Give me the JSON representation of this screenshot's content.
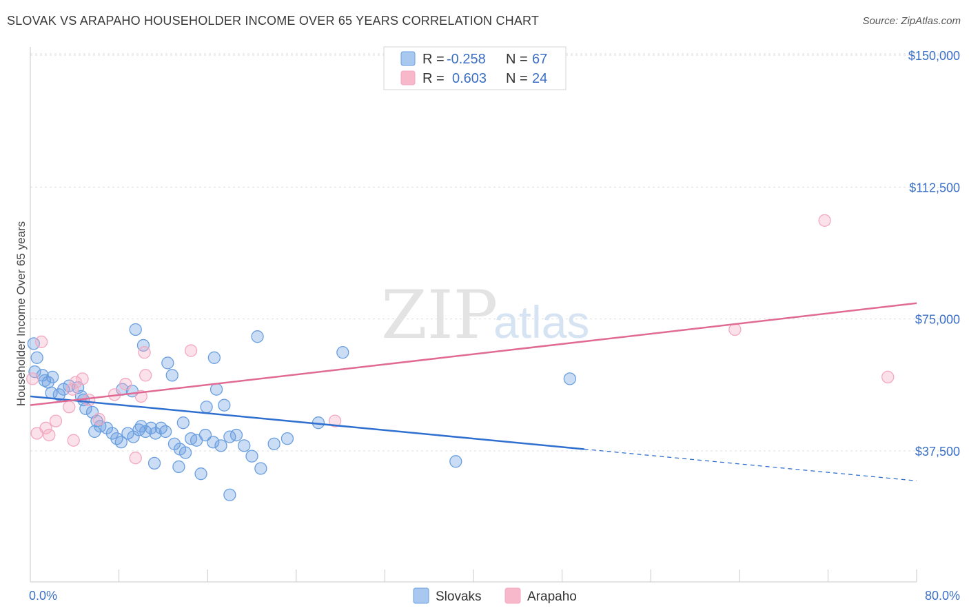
{
  "header": {
    "title": "SLOVAK VS ARAPAHO HOUSEHOLDER INCOME OVER 65 YEARS CORRELATION CHART",
    "source": "Source: ZipAtlas.com"
  },
  "watermark": {
    "part1": "ZIP",
    "part2": "atlas"
  },
  "legend": {
    "r_label": "R =",
    "n_label": "N =",
    "rows": [
      {
        "r": "-0.258",
        "n": "67",
        "color": "#a9c8f0"
      },
      {
        "r": "0.603",
        "n": "24",
        "color": "#f7b8cb"
      }
    ]
  },
  "chart_data": {
    "type": "scatter",
    "title": "SLOVAK VS ARAPAHO HOUSEHOLDER INCOME OVER 65 YEARS CORRELATION CHART",
    "xlabel": "",
    "ylabel": "Householder Income Over 65 years",
    "xlim": [
      0,
      80
    ],
    "ylim": [
      0,
      155000
    ],
    "x_tick_labels": [
      "0.0%",
      "80.0%"
    ],
    "y_ticks": [
      {
        "value": 37500,
        "label": "$37,500"
      },
      {
        "value": 75000,
        "label": "$75,000"
      },
      {
        "value": 112500,
        "label": "$112,500"
      },
      {
        "value": 150000,
        "label": "$150,000"
      }
    ],
    "grid": true,
    "legend_position": "top-center",
    "series": [
      {
        "name": "Slovaks",
        "color": "#6a9fe0",
        "line_color": "#2f6fcf",
        "trend": {
          "x0": 0,
          "y0": 53000,
          "x1": 50,
          "y1": 38000,
          "dash_x1": 80,
          "dash_y1": 29000
        },
        "points": [
          [
            0.3,
            68000
          ],
          [
            0.6,
            64000
          ],
          [
            0.4,
            60000
          ],
          [
            1.1,
            59000
          ],
          [
            1.3,
            57500
          ],
          [
            1.6,
            57000
          ],
          [
            2.0,
            58500
          ],
          [
            1.9,
            54000
          ],
          [
            2.6,
            53500
          ],
          [
            3.0,
            55000
          ],
          [
            3.5,
            56000
          ],
          [
            4.3,
            55500
          ],
          [
            4.6,
            53000
          ],
          [
            4.8,
            52000
          ],
          [
            5.0,
            49500
          ],
          [
            5.6,
            48500
          ],
          [
            6.0,
            46000
          ],
          [
            6.3,
            44500
          ],
          [
            5.8,
            43000
          ],
          [
            6.9,
            44000
          ],
          [
            7.4,
            42500
          ],
          [
            7.8,
            41000
          ],
          [
            8.2,
            40000
          ],
          [
            8.8,
            42500
          ],
          [
            9.3,
            41500
          ],
          [
            9.8,
            43500
          ],
          [
            10.0,
            44500
          ],
          [
            10.4,
            43000
          ],
          [
            10.9,
            44000
          ],
          [
            11.3,
            42500
          ],
          [
            11.8,
            44000
          ],
          [
            12.2,
            43000
          ],
          [
            13.0,
            39500
          ],
          [
            13.5,
            38000
          ],
          [
            14.0,
            37000
          ],
          [
            14.5,
            41000
          ],
          [
            15.0,
            40500
          ],
          [
            15.8,
            42000
          ],
          [
            16.5,
            40000
          ],
          [
            17.2,
            39000
          ],
          [
            18.0,
            41500
          ],
          [
            18.6,
            42000
          ],
          [
            19.3,
            39000
          ],
          [
            20.0,
            36000
          ],
          [
            20.8,
            32500
          ],
          [
            9.5,
            72000
          ],
          [
            10.2,
            67500
          ],
          [
            12.4,
            62500
          ],
          [
            12.8,
            59000
          ],
          [
            16.6,
            64000
          ],
          [
            20.5,
            70000
          ],
          [
            28.2,
            65500
          ],
          [
            16.8,
            55000
          ],
          [
            15.9,
            50000
          ],
          [
            17.5,
            50500
          ],
          [
            13.8,
            45500
          ],
          [
            11.2,
            34000
          ],
          [
            13.4,
            33000
          ],
          [
            15.4,
            31000
          ],
          [
            18.0,
            25000
          ],
          [
            22.0,
            39500
          ],
          [
            23.2,
            41000
          ],
          [
            38.4,
            34500
          ],
          [
            48.7,
            58000
          ],
          [
            9.2,
            54500
          ],
          [
            8.3,
            55000
          ],
          [
            26.0,
            45500
          ]
        ]
      },
      {
        "name": "Arapaho",
        "color": "#f3a8c0",
        "line_color": "#e06a93",
        "trend": {
          "x0": 0,
          "y0": 50500,
          "x1": 80,
          "y1": 79500
        },
        "points": [
          [
            0.2,
            58000
          ],
          [
            1.0,
            68500
          ],
          [
            0.6,
            42500
          ],
          [
            1.4,
            44000
          ],
          [
            1.7,
            42000
          ],
          [
            2.3,
            46000
          ],
          [
            3.5,
            50000
          ],
          [
            3.8,
            55000
          ],
          [
            4.1,
            57000
          ],
          [
            4.7,
            58000
          ],
          [
            3.9,
            40500
          ],
          [
            5.3,
            52000
          ],
          [
            6.2,
            46500
          ],
          [
            7.6,
            53500
          ],
          [
            8.6,
            56500
          ],
          [
            10.0,
            53000
          ],
          [
            10.4,
            59000
          ],
          [
            10.3,
            65500
          ],
          [
            9.5,
            35500
          ],
          [
            14.5,
            66000
          ],
          [
            27.5,
            46000
          ],
          [
            71.7,
            103000
          ],
          [
            63.6,
            72000
          ],
          [
            77.4,
            58500
          ]
        ]
      }
    ]
  }
}
